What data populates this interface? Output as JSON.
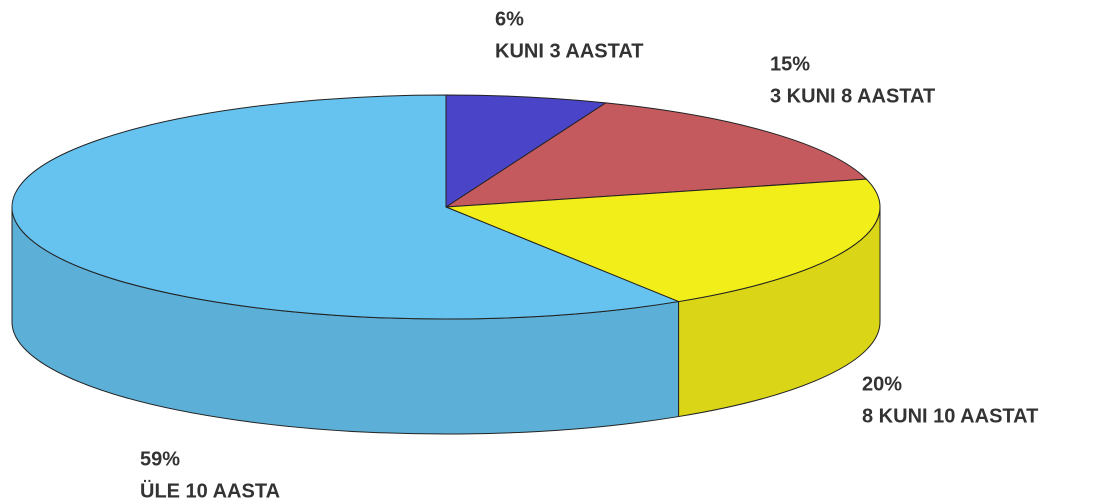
{
  "chart_data": {
    "type": "pie",
    "categories": [
      "KUNI 3 AASTAT",
      "3 KUNI 8 AASTAT",
      "8 KUNI 10 AASTAT",
      "ÜLE 10 AASTA"
    ],
    "values": [
      6,
      15,
      20,
      59
    ],
    "value_labels": [
      "6%",
      "15%",
      "20%",
      "59%"
    ],
    "colors": [
      "#4a44c8",
      "#c45a5e",
      "#f2ee1a",
      "#66c2ee"
    ]
  }
}
